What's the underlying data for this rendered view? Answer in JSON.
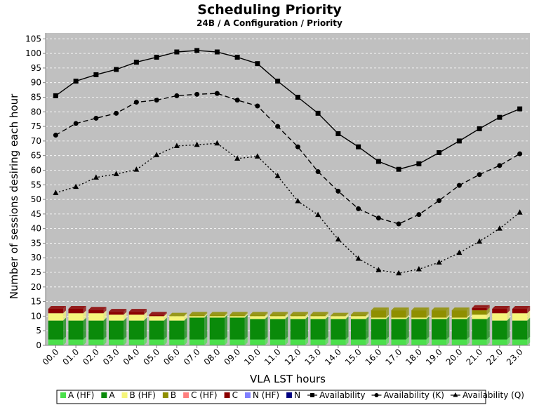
{
  "chart_data": {
    "type": "bar+line",
    "title": "Scheduling Priority",
    "subtitle": "24B / A Configuration /  Priority",
    "xlabel": "VLA LST hours",
    "ylabel": "Number of sessions desiring each hour",
    "ylim": [
      0,
      107
    ],
    "yticks": [
      0,
      5,
      10,
      15,
      20,
      25,
      30,
      35,
      40,
      45,
      50,
      55,
      60,
      65,
      70,
      75,
      80,
      85,
      90,
      95,
      100,
      105
    ],
    "categories": [
      "00.0",
      "01.0",
      "02.0",
      "03.0",
      "04.0",
      "05.0",
      "06.0",
      "07.0",
      "08.0",
      "09.0",
      "10.0",
      "11.0",
      "12.0",
      "13.0",
      "14.0",
      "15.0",
      "16.0",
      "17.0",
      "18.0",
      "19.0",
      "20.0",
      "21.0",
      "22.0",
      "23.0"
    ],
    "stack_series": [
      {
        "name": "A (HF)",
        "color": "#4be04b",
        "values": [
          2,
          2,
          2,
          2,
          2,
          2,
          2,
          2,
          2,
          2,
          2,
          2,
          2,
          2,
          2,
          2,
          2,
          2,
          2,
          2,
          2,
          2,
          2,
          2
        ]
      },
      {
        "name": "A",
        "color": "#0a8a0a",
        "values": [
          6.5,
          6.5,
          6.5,
          6.5,
          6.5,
          6.5,
          6.5,
          7.5,
          7.5,
          7.5,
          7,
          7,
          7,
          7,
          7,
          7,
          7,
          7,
          7,
          7,
          7,
          7,
          6.5,
          6.5
        ]
      },
      {
        "name": "B (HF)",
        "color": "#f5f57a",
        "values": [
          2.5,
          2.5,
          2.5,
          2,
          2,
          1.5,
          1.5,
          0.5,
          0.5,
          0.5,
          1,
          1,
          1,
          1,
          1,
          1,
          0.5,
          0.5,
          0.5,
          0.5,
          0.5,
          1.5,
          2.5,
          2.5
        ]
      },
      {
        "name": "B",
        "color": "#8f8f00",
        "values": [
          0,
          0,
          0,
          0,
          0,
          0,
          0.2,
          0.5,
          0.5,
          0.5,
          0.5,
          0.5,
          0.5,
          0.5,
          0.2,
          0.5,
          2.5,
          2.5,
          2.5,
          2.5,
          2.5,
          1.5,
          0,
          0
        ]
      },
      {
        "name": "C (HF)",
        "color": "#ff8080",
        "values": [
          0,
          0,
          0,
          0,
          0,
          0,
          0,
          0,
          0,
          0,
          0,
          0,
          0,
          0,
          0,
          0,
          0,
          0,
          0,
          0,
          0,
          0,
          0,
          0
        ]
      },
      {
        "name": "C",
        "color": "#8b0000",
        "values": [
          1.5,
          1.5,
          1.2,
          1,
          1,
          0.5,
          0,
          0,
          0,
          0,
          0,
          0,
          0,
          0,
          0,
          0,
          0,
          0,
          0,
          0,
          0,
          0.8,
          1.5,
          1.5
        ]
      },
      {
        "name": "N (HF)",
        "color": "#8080ff",
        "values": [
          0,
          0,
          0,
          0,
          0,
          0,
          0,
          0,
          0,
          0,
          0,
          0,
          0,
          0,
          0,
          0,
          0,
          0,
          0,
          0,
          0,
          0,
          0,
          0
        ]
      },
      {
        "name": "N",
        "color": "#000080",
        "values": [
          0,
          0,
          0,
          0,
          0,
          0,
          0,
          0,
          0,
          0,
          0,
          0,
          0,
          0,
          0,
          0,
          0,
          0,
          0,
          0,
          0,
          0,
          0,
          0
        ]
      }
    ],
    "line_series": [
      {
        "name": "Availability",
        "marker": "square",
        "dash": "solid",
        "values": [
          85.5,
          90.5,
          92.7,
          94.5,
          97,
          98.7,
          100.5,
          101,
          100.5,
          98.7,
          96.5,
          90.5,
          85,
          79.5,
          72.5,
          68,
          63,
          60.3,
          62.2,
          66,
          70,
          74.2,
          78.1,
          81
        ]
      },
      {
        "name": "Availability (K)",
        "marker": "circle",
        "dash": "dashed",
        "values": [
          72,
          76,
          77.8,
          79.5,
          83.3,
          84,
          85.5,
          86,
          86.3,
          84,
          82,
          75,
          68,
          59.5,
          52.8,
          46.8,
          43.6,
          41.6,
          44.8,
          49.6,
          54.8,
          58.5,
          61.6,
          65.6
        ]
      },
      {
        "name": "Availability (Q)",
        "marker": "triangle",
        "dash": "dotted",
        "values": [
          52.2,
          54.3,
          57.5,
          58.7,
          60.2,
          65.2,
          68.3,
          68.7,
          69.2,
          64,
          64.7,
          58,
          49.4,
          44.7,
          36.3,
          29.7,
          25.8,
          24.7,
          26.1,
          28.4,
          31.7,
          35.6,
          40,
          45.5
        ]
      }
    ],
    "legend_position": "bottom",
    "grid": true
  }
}
